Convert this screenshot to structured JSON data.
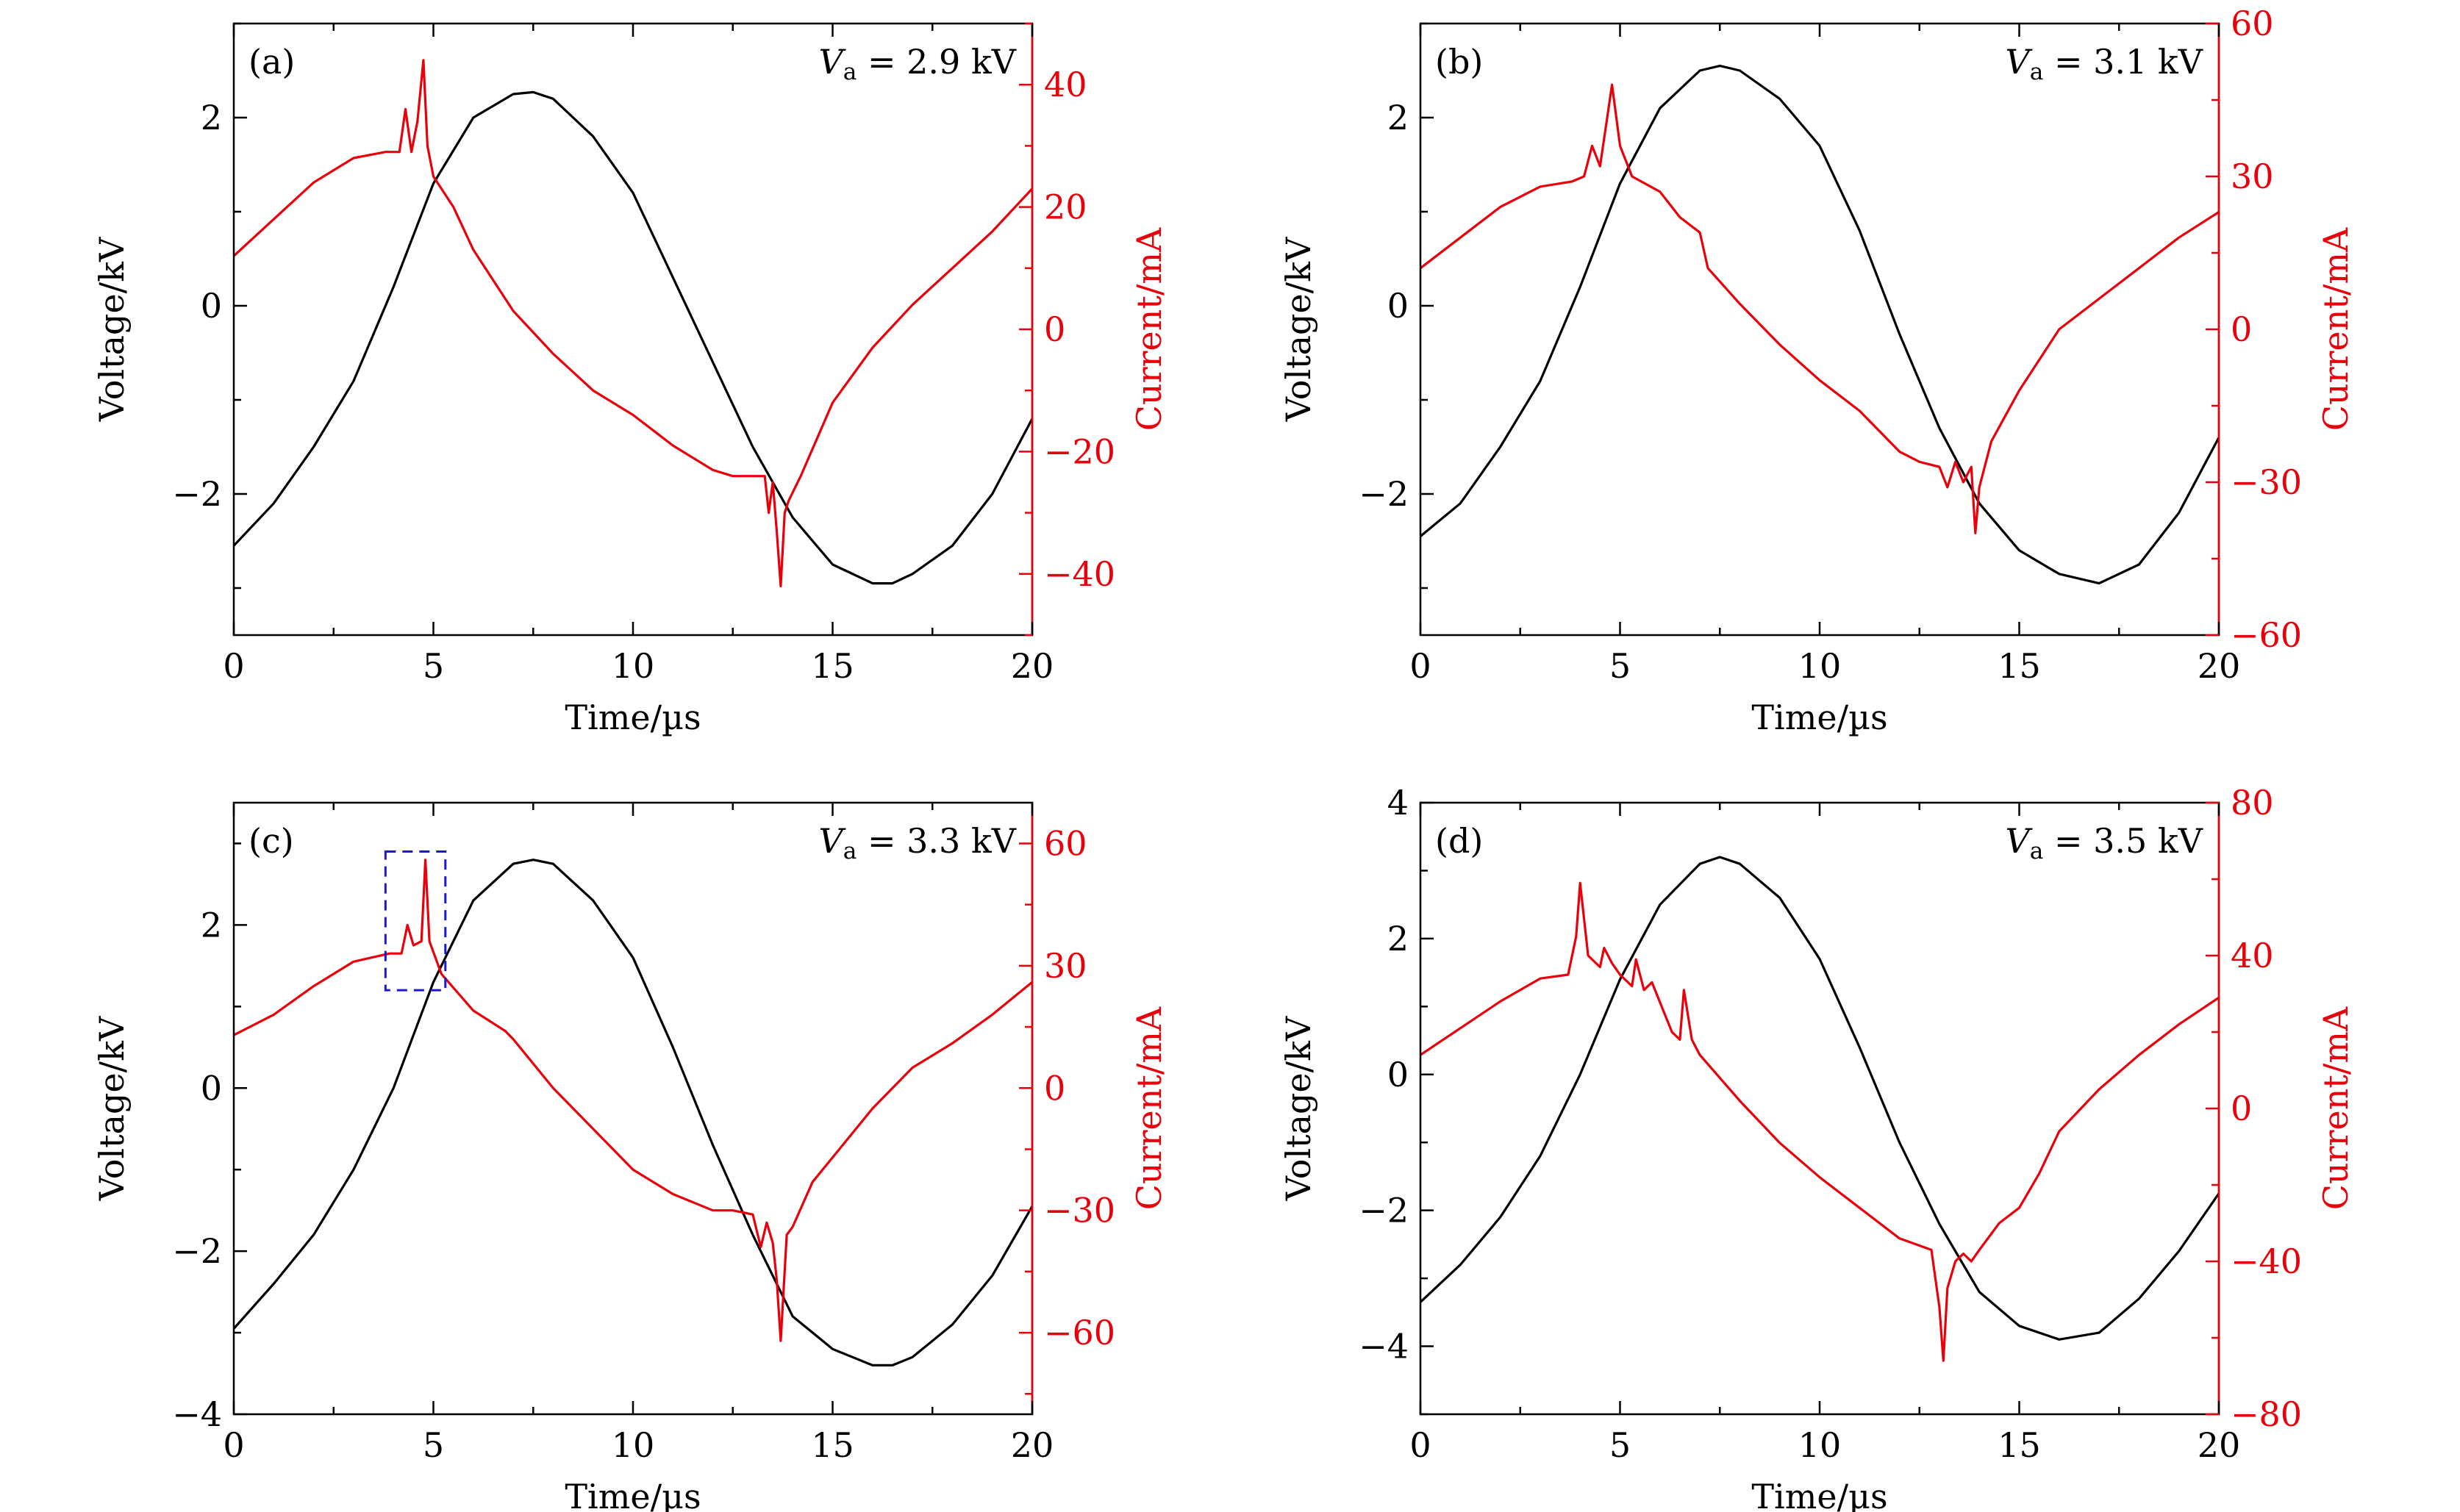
{
  "colors": {
    "voltage": "#000000",
    "current": "#e8000b",
    "highlight": "#1a1acd"
  },
  "chart_data": [
    {
      "type": "line",
      "panel_label": "(a)",
      "annotation": {
        "var": "V",
        "sub": "a",
        "rest": " = 2.9 kV"
      },
      "xlabel": "Time/µs",
      "ylabel": "Voltage/kV",
      "y2label": "Current/mA",
      "xlim": [
        0,
        20
      ],
      "xticks": [
        "0",
        "5",
        "10",
        "15",
        "20"
      ],
      "ylim": [
        -3.5,
        3.0
      ],
      "yticks": [
        {
          "v": -2,
          "t": "−2"
        },
        {
          "v": 0,
          "t": "0"
        },
        {
          "v": 2,
          "t": "2"
        }
      ],
      "y2lim": [
        -50,
        50
      ],
      "y2ticks": [
        {
          "v": -40,
          "t": "−40"
        },
        {
          "v": -20,
          "t": "−20"
        },
        {
          "v": 0,
          "t": "0"
        },
        {
          "v": 20,
          "t": "20"
        },
        {
          "v": 40,
          "t": "40"
        }
      ],
      "series": [
        {
          "axis": "left",
          "x": [
            0,
            1,
            2,
            3,
            4,
            5,
            6,
            7,
            7.5,
            8,
            9,
            10,
            11,
            12,
            13,
            14,
            15,
            16,
            16.5,
            17,
            18,
            19,
            20
          ],
          "y": [
            -2.55,
            -2.1,
            -1.5,
            -0.8,
            0.2,
            1.3,
            2.0,
            2.25,
            2.27,
            2.2,
            1.8,
            1.2,
            0.3,
            -0.6,
            -1.5,
            -2.25,
            -2.75,
            -2.95,
            -2.95,
            -2.85,
            -2.55,
            -2.0,
            -1.2
          ]
        },
        {
          "axis": "right",
          "x": [
            0,
            1,
            2,
            3,
            3.8,
            4.15,
            4.3,
            4.45,
            4.6,
            4.75,
            4.85,
            5.0,
            5.5,
            6,
            7,
            8,
            9,
            10,
            11,
            12,
            12.5,
            13,
            13.3,
            13.4,
            13.5,
            13.6,
            13.7,
            13.8,
            13.9,
            14.2,
            15,
            16,
            17,
            18,
            19,
            20
          ],
          "y": [
            12,
            18,
            24,
            28,
            29,
            29,
            36,
            29,
            34,
            44,
            30,
            25,
            20,
            13,
            3,
            -4,
            -10,
            -14,
            -19,
            -23,
            -24,
            -24,
            -24,
            -30,
            -25,
            -33,
            -42,
            -30,
            -28,
            -24,
            -12,
            -3,
            4,
            10,
            16,
            23
          ]
        }
      ]
    },
    {
      "type": "line",
      "panel_label": "(b)",
      "annotation": {
        "var": "V",
        "sub": "a",
        "rest": " = 3.1 kV"
      },
      "xlabel": "Time/µs",
      "ylabel": "Voltage/kV",
      "y2label": "Current/mA",
      "xlim": [
        0,
        20
      ],
      "xticks": [
        "0",
        "5",
        "10",
        "15",
        "20"
      ],
      "ylim": [
        -3.5,
        3.0
      ],
      "yticks": [
        {
          "v": -2,
          "t": "−2"
        },
        {
          "v": 0,
          "t": "0"
        },
        {
          "v": 2,
          "t": "2"
        }
      ],
      "y2lim": [
        -60,
        60
      ],
      "y2ticks": [
        {
          "v": -60,
          "t": "−60"
        },
        {
          "v": -30,
          "t": "−30"
        },
        {
          "v": 0,
          "t": "0"
        },
        {
          "v": 30,
          "t": "30"
        },
        {
          "v": 60,
          "t": "60"
        }
      ],
      "series": [
        {
          "axis": "left",
          "x": [
            0,
            1,
            2,
            3,
            4,
            5,
            6,
            7,
            7.5,
            8,
            9,
            10,
            11,
            12,
            13,
            14,
            15,
            16,
            17,
            18,
            19,
            20
          ],
          "y": [
            -2.45,
            -2.1,
            -1.5,
            -0.8,
            0.2,
            1.3,
            2.1,
            2.5,
            2.55,
            2.5,
            2.2,
            1.7,
            0.8,
            -0.3,
            -1.3,
            -2.1,
            -2.6,
            -2.85,
            -2.95,
            -2.75,
            -2.2,
            -1.4
          ]
        },
        {
          "axis": "right",
          "x": [
            0,
            1,
            2,
            3,
            3.8,
            4.1,
            4.3,
            4.5,
            4.65,
            4.8,
            5.0,
            5.3,
            6,
            6.5,
            7,
            7.2,
            8,
            9,
            10,
            11,
            12,
            12.5,
            13,
            13.2,
            13.4,
            13.6,
            13.8,
            13.9,
            14.0,
            14.3,
            15,
            16,
            17,
            18,
            19,
            20
          ],
          "y": [
            12,
            18,
            24,
            28,
            29,
            30,
            36,
            32,
            40,
            48,
            36,
            30,
            27,
            22,
            19,
            12,
            5,
            -3,
            -10,
            -16,
            -24,
            -26,
            -27,
            -31,
            -26,
            -30,
            -27,
            -40,
            -31,
            -22,
            -12,
            0,
            6,
            12,
            18,
            23
          ]
        }
      ]
    },
    {
      "type": "line",
      "panel_label": "(c)",
      "annotation": {
        "var": "V",
        "sub": "a",
        "rest": " = 3.3 kV"
      },
      "xlabel": "Time/µs",
      "ylabel": "Voltage/kV",
      "y2label": "Current/mA",
      "xlim": [
        0,
        20
      ],
      "xticks": [
        "0",
        "5",
        "10",
        "15",
        "20"
      ],
      "ylim": [
        -4.0,
        3.5
      ],
      "yticks": [
        {
          "v": -4,
          "t": "−4"
        },
        {
          "v": -2,
          "t": "−2"
        },
        {
          "v": 0,
          "t": "0"
        },
        {
          "v": 2,
          "t": "2"
        }
      ],
      "y2lim": [
        -80,
        70
      ],
      "y2ticks": [
        {
          "v": -60,
          "t": "−60"
        },
        {
          "v": -30,
          "t": "−30"
        },
        {
          "v": 0,
          "t": "0"
        },
        {
          "v": 30,
          "t": "30"
        },
        {
          "v": 60,
          "t": "60"
        }
      ],
      "highlight_box": {
        "x0": 3.8,
        "x1": 5.3,
        "y0": 1.2,
        "y1": 2.9
      },
      "series": [
        {
          "axis": "left",
          "x": [
            0,
            1,
            2,
            3,
            4,
            5,
            6,
            7,
            7.5,
            8,
            9,
            10,
            11,
            12,
            13,
            14,
            15,
            16,
            16.5,
            17,
            18,
            19,
            20
          ],
          "y": [
            -2.95,
            -2.4,
            -1.8,
            -1.0,
            0.0,
            1.3,
            2.3,
            2.75,
            2.8,
            2.75,
            2.3,
            1.6,
            0.5,
            -0.7,
            -1.8,
            -2.8,
            -3.2,
            -3.4,
            -3.4,
            -3.3,
            -2.9,
            -2.3,
            -1.45
          ]
        },
        {
          "axis": "right",
          "x": [
            0,
            1,
            2,
            3,
            3.9,
            4.2,
            4.35,
            4.5,
            4.7,
            4.8,
            4.9,
            5.2,
            6,
            6.8,
            7,
            8,
            9,
            10,
            11,
            12,
            12.5,
            13,
            13.2,
            13.35,
            13.5,
            13.6,
            13.7,
            13.85,
            14.0,
            14.5,
            15,
            16,
            17,
            18,
            19,
            20
          ],
          "y": [
            13,
            18,
            25,
            31,
            33,
            33,
            40,
            35,
            36,
            56,
            36,
            28,
            19,
            14,
            12,
            0,
            -10,
            -20,
            -26,
            -30,
            -30,
            -31,
            -39,
            -33,
            -38,
            -47,
            -62,
            -36,
            -34,
            -23,
            -17,
            -5,
            5,
            11,
            18,
            26
          ]
        }
      ]
    },
    {
      "type": "line",
      "panel_label": "(d)",
      "annotation": {
        "var": "V",
        "sub": "a",
        "rest": " = 3.5 kV"
      },
      "xlabel": "Time/µs",
      "ylabel": "Voltage/kV",
      "y2label": "Current/mA",
      "xlim": [
        0,
        20
      ],
      "xticks": [
        "0",
        "5",
        "10",
        "15",
        "20"
      ],
      "ylim": [
        -5.0,
        4.0
      ],
      "yticks": [
        {
          "v": -4,
          "t": "−4"
        },
        {
          "v": -2,
          "t": "−2"
        },
        {
          "v": 0,
          "t": "0"
        },
        {
          "v": 2,
          "t": "2"
        },
        {
          "v": 4,
          "t": "4"
        }
      ],
      "y2lim": [
        -80,
        80
      ],
      "y2ticks": [
        {
          "v": -80,
          "t": "−80"
        },
        {
          "v": -40,
          "t": "−40"
        },
        {
          "v": 0,
          "t": "0"
        },
        {
          "v": 40,
          "t": "40"
        },
        {
          "v": 80,
          "t": "80"
        }
      ],
      "series": [
        {
          "axis": "left",
          "x": [
            0,
            1,
            2,
            3,
            4,
            5,
            6,
            7,
            7.5,
            8,
            9,
            10,
            11,
            12,
            13,
            14,
            15,
            16,
            16.5,
            17,
            18,
            19,
            20
          ],
          "y": [
            -3.35,
            -2.8,
            -2.1,
            -1.2,
            0.0,
            1.4,
            2.5,
            3.1,
            3.2,
            3.1,
            2.6,
            1.7,
            0.4,
            -1.0,
            -2.2,
            -3.2,
            -3.7,
            -3.9,
            -3.85,
            -3.8,
            -3.3,
            -2.6,
            -1.75
          ]
        },
        {
          "axis": "right",
          "x": [
            0,
            1,
            2,
            3,
            3.7,
            3.9,
            4.0,
            4.2,
            4.5,
            4.6,
            4.8,
            5.0,
            5.3,
            5.4,
            5.6,
            5.8,
            6.3,
            6.5,
            6.6,
            6.8,
            7,
            8,
            9,
            10,
            11,
            12,
            12.8,
            13.0,
            13.1,
            13.2,
            13.4,
            13.6,
            13.8,
            14.0,
            14.5,
            15,
            15.5,
            16,
            17,
            18,
            19,
            20
          ],
          "y": [
            14,
            21,
            28,
            34,
            35,
            45,
            59,
            40,
            37,
            42,
            38,
            35,
            32,
            39,
            31,
            33,
            20,
            18,
            31,
            18,
            14,
            2,
            -9,
            -18,
            -26,
            -34,
            -37,
            -52,
            -66,
            -47,
            -40,
            -38,
            -40,
            -37,
            -30,
            -26,
            -17,
            -6,
            5,
            14,
            22,
            29
          ]
        }
      ]
    }
  ]
}
